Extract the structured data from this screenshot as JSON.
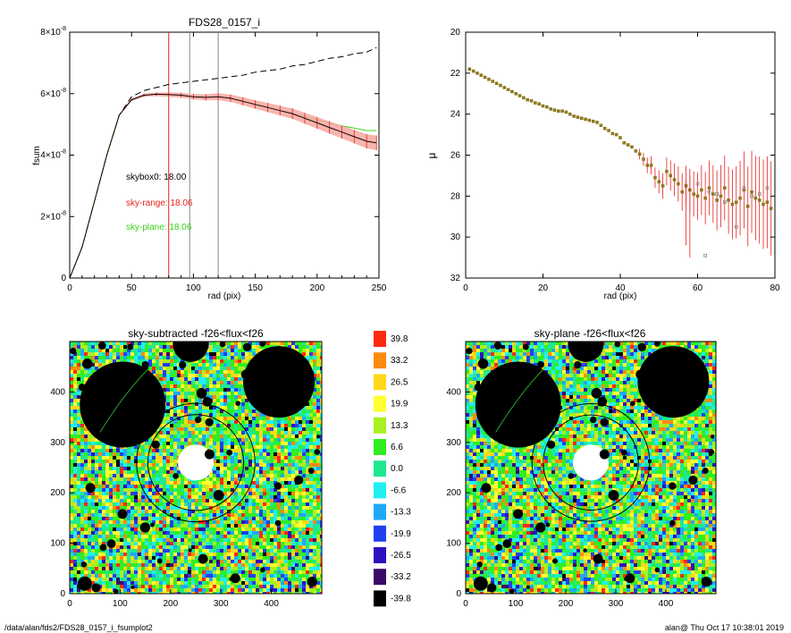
{
  "fsum_plot": {
    "title": "FDS28_0157_i",
    "xlabel": "rad (pix)",
    "ylabel": "fsum",
    "xticks": [
      "0",
      "50",
      "100",
      "150",
      "200",
      "250"
    ],
    "yticks": [
      {
        "v": 0,
        "label": "0",
        "sup": ""
      },
      {
        "v": 2,
        "label": "2×10",
        "sup": "-8"
      },
      {
        "v": 4,
        "label": "4×10",
        "sup": "-8"
      },
      {
        "v": 6,
        "label": "6×10",
        "sup": "-8"
      },
      {
        "v": 8,
        "label": "8×10",
        "sup": "-8"
      }
    ],
    "annotations": [
      {
        "text": "skybox0: 18.00",
        "color": "#000000"
      },
      {
        "text": "sky-range: 18.06",
        "color": "#e8201c"
      },
      {
        "text": "sky-plane: 18.06",
        "color": "#3ad01a"
      }
    ]
  },
  "mu_plot": {
    "xlabel": "rad (pix)",
    "ylabel": "μ",
    "xticks": [
      "0",
      "20",
      "40",
      "60",
      "80"
    ],
    "yticks": [
      "20",
      "22",
      "24",
      "26",
      "28",
      "30",
      "32"
    ]
  },
  "image_left": {
    "title": "sky-subtracted -f26<flux<f26",
    "xticks": [
      "0",
      "100",
      "200",
      "300",
      "400"
    ],
    "yticks": [
      "0",
      "100",
      "200",
      "300",
      "400"
    ]
  },
  "image_right": {
    "title": "sky-plane -f26<flux<f26",
    "xticks": [
      "0",
      "100",
      "200",
      "300",
      "400"
    ],
    "yticks": [
      "0",
      "100",
      "200",
      "300",
      "400"
    ]
  },
  "colorbar": {
    "levels": [
      {
        "label": "39.8",
        "color": "#ff2a12"
      },
      {
        "label": "33.2",
        "color": "#ff8a10"
      },
      {
        "label": "26.5",
        "color": "#ffd81a"
      },
      {
        "label": "19.9",
        "color": "#ffff30"
      },
      {
        "label": "13.3",
        "color": "#a8f020"
      },
      {
        "label": "6.6",
        "color": "#30ee20"
      },
      {
        "label": "0.0",
        "color": "#20e890"
      },
      {
        "label": "-6.6",
        "color": "#20f0f0"
      },
      {
        "label": "-13.3",
        "color": "#20a8f8"
      },
      {
        "label": "-19.9",
        "color": "#2040f0"
      },
      {
        "label": "-26.5",
        "color": "#3010c0"
      },
      {
        "label": "-33.2",
        "color": "#3a0a6a"
      },
      {
        "label": "-39.8",
        "color": "#000000"
      }
    ]
  },
  "footer": {
    "path": "/data/alan/fds2/FDS28_0157_i_fsumplot2",
    "stamp": "alan@  Thu Oct 17 10:38:01 2019"
  },
  "chart_data": [
    {
      "type": "line",
      "title": "FDS28_0157_i",
      "xlabel": "rad (pix)",
      "ylabel": "fsum",
      "xlim": [
        0,
        250
      ],
      "ylim": [
        0,
        8e-08
      ],
      "vertical_lines": [
        {
          "x": 80,
          "color": "#e8201c"
        },
        {
          "x": 97,
          "color": "#888888"
        },
        {
          "x": 120,
          "color": "#888888"
        }
      ],
      "series": [
        {
          "style": "dashed",
          "color": "#000000",
          "x": [
            0,
            10,
            20,
            30,
            40,
            50,
            60,
            70,
            80,
            90,
            100,
            110,
            120,
            130,
            140,
            150,
            160,
            170,
            180,
            190,
            200,
            210,
            220,
            230,
            240,
            248
          ],
          "y": [
            0,
            1e-08,
            2.5e-08,
            4e-08,
            5.3e-08,
            5.9e-08,
            6.1e-08,
            6.2e-08,
            6.3e-08,
            6.35e-08,
            6.4e-08,
            6.45e-08,
            6.5e-08,
            6.55e-08,
            6.6e-08,
            6.7e-08,
            6.75e-08,
            6.8e-08,
            6.9e-08,
            6.95e-08,
            7.05e-08,
            7.15e-08,
            7.2e-08,
            7.3e-08,
            7.35e-08,
            7.5e-08
          ]
        },
        {
          "style": "solid",
          "color": "#3ad01a",
          "x": [
            0,
            10,
            20,
            30,
            40,
            50,
            60,
            70,
            80,
            90,
            100,
            110,
            120,
            130,
            140,
            150,
            160,
            170,
            180,
            190,
            200,
            210,
            220,
            230,
            240,
            248
          ],
          "y": [
            0,
            1e-08,
            2.5e-08,
            4e-08,
            5.3e-08,
            5.8e-08,
            5.95e-08,
            5.98e-08,
            5.97e-08,
            5.95e-08,
            5.9e-08,
            5.88e-08,
            5.9e-08,
            5.85e-08,
            5.75e-08,
            5.65e-08,
            5.55e-08,
            5.45e-08,
            5.35e-08,
            5.25e-08,
            5.15e-08,
            5.05e-08,
            4.95e-08,
            4.88e-08,
            4.8e-08,
            4.8e-08
          ]
        },
        {
          "style": "errorbars",
          "color": "#e8201c",
          "x": [
            0,
            10,
            20,
            30,
            40,
            50,
            60,
            70,
            80,
            90,
            100,
            110,
            120,
            130,
            140,
            150,
            160,
            170,
            180,
            190,
            200,
            210,
            220,
            230,
            240,
            248
          ],
          "y": [
            0,
            1e-08,
            2.5e-08,
            4e-08,
            5.3e-08,
            5.8e-08,
            5.95e-08,
            5.98e-08,
            5.97e-08,
            5.95e-08,
            5.9e-08,
            5.88e-08,
            5.9e-08,
            5.85e-08,
            5.75e-08,
            5.65e-08,
            5.55e-08,
            5.45e-08,
            5.35e-08,
            5.2e-08,
            5.05e-08,
            4.9e-08,
            4.75e-08,
            4.6e-08,
            4.45e-08,
            4.4e-08
          ],
          "err": [
            0,
            0,
            0,
            0,
            2e-10,
            4e-10,
            5e-10,
            6e-10,
            7e-10,
            8e-10,
            9e-10,
            1e-09,
            1.1e-09,
            1.2e-09,
            1.3e-09,
            1.4e-09,
            1.5e-09,
            1.6e-09,
            1.7e-09,
            1.8e-09,
            1.9e-09,
            2e-09,
            2.1e-09,
            2.2e-09,
            2.3e-09,
            2.4e-09
          ]
        }
      ]
    },
    {
      "type": "scatter",
      "xlabel": "rad (pix)",
      "ylabel": "μ",
      "xlim": [
        0,
        80
      ],
      "ylim": [
        32,
        20
      ],
      "series": [
        {
          "marker": "square",
          "color": "#8a7a20",
          "x": [
            1,
            2,
            3,
            4,
            5,
            6,
            7,
            8,
            9,
            10,
            11,
            12,
            13,
            14,
            15,
            16,
            17,
            18,
            19,
            20,
            21,
            22,
            23,
            24,
            25,
            26,
            27,
            28,
            29,
            30,
            31,
            32,
            33,
            34,
            35,
            36,
            37,
            38,
            39,
            40,
            41,
            42,
            43,
            44,
            45,
            46,
            47,
            48,
            49,
            50,
            51,
            52,
            53,
            54,
            55,
            56,
            57,
            58,
            59,
            60,
            61,
            62,
            63,
            64,
            65,
            66,
            67,
            68,
            69,
            70,
            71,
            72,
            73,
            74,
            75,
            76,
            77,
            78,
            79
          ],
          "y": [
            21.8,
            21.9,
            22.0,
            22.1,
            22.2,
            22.3,
            22.4,
            22.5,
            22.6,
            22.7,
            22.8,
            22.9,
            23.0,
            23.1,
            23.2,
            23.3,
            23.35,
            23.45,
            23.5,
            23.6,
            23.65,
            23.75,
            23.8,
            23.85,
            23.85,
            23.9,
            24.0,
            24.1,
            24.15,
            24.2,
            24.25,
            24.3,
            24.35,
            24.4,
            24.55,
            24.7,
            24.8,
            24.95,
            25.0,
            25.15,
            25.4,
            25.5,
            25.6,
            25.8,
            25.95,
            26.2,
            26.5,
            26.5,
            27.1,
            27.3,
            27.5,
            26.8,
            27.0,
            27.2,
            27.4,
            27.8,
            27.5,
            27.7,
            27.9,
            28.0,
            27.7,
            28.1,
            27.6,
            27.9,
            28.2,
            28.0,
            27.6,
            28.2,
            28.4,
            28.3,
            28.1,
            27.7,
            28.5,
            27.8,
            28.1,
            28.2,
            28.4,
            28.3,
            28.6
          ]
        },
        {
          "marker": "square-outline",
          "color": "#888888",
          "x": [
            60,
            62,
            63,
            65,
            67,
            70,
            72,
            74,
            76,
            78
          ],
          "y": [
            27.4,
            30.9,
            27.8,
            27.9,
            28.3,
            29.5,
            27.6,
            28.0,
            27.9,
            27.6
          ]
        }
      ]
    }
  ]
}
